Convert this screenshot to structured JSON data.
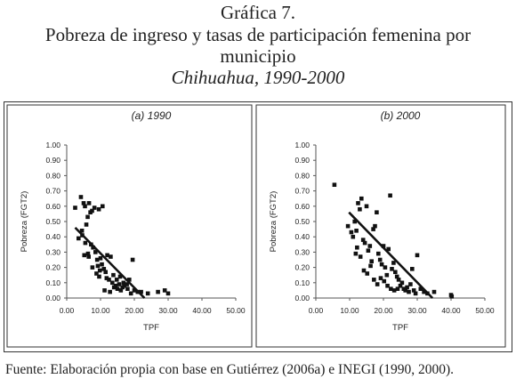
{
  "header": {
    "line1": "Gráfica 7.",
    "line2": "Pobreza de ingreso y tasas de participación femenina por",
    "line3": "municipio",
    "line4": "Chihuahua, 1990-2000"
  },
  "source": "Fuente: Elaboración propia con base en Gutiérrez (2006a) e INEGI (1990, 2000).",
  "colors": {
    "marker": "#111111",
    "trend": "#111111",
    "frame": "#333333"
  },
  "chart_data": [
    {
      "type": "scatter",
      "title": "(a) 1990",
      "xlabel": "TPF",
      "ylabel": "Pobreza (FGT2)",
      "xlim": [
        0,
        50
      ],
      "ylim": [
        0,
        1
      ],
      "x_ticks": [
        "0.00",
        "10.00",
        "20.00",
        "30.00",
        "40.00",
        "50.00"
      ],
      "y_ticks": [
        "0.00",
        "0.10",
        "0.20",
        "0.30",
        "0.40",
        "0.50",
        "0.60",
        "0.70",
        "0.80",
        "0.90",
        "1.00"
      ],
      "points": [
        [
          2.5,
          0.59
        ],
        [
          3.5,
          0.39
        ],
        [
          4.2,
          0.66
        ],
        [
          4.6,
          0.41
        ],
        [
          5.0,
          0.62
        ],
        [
          5.4,
          0.6
        ],
        [
          5.8,
          0.48
        ],
        [
          6.2,
          0.53
        ],
        [
          6.6,
          0.62
        ],
        [
          7.0,
          0.56
        ],
        [
          7.5,
          0.57
        ],
        [
          8.2,
          0.59
        ],
        [
          9.5,
          0.58
        ],
        [
          10.6,
          0.6
        ],
        [
          4.5,
          0.44
        ],
        [
          5.5,
          0.36
        ],
        [
          6.3,
          0.29
        ],
        [
          7.2,
          0.35
        ],
        [
          7.8,
          0.33
        ],
        [
          8.5,
          0.3
        ],
        [
          9.0,
          0.25
        ],
        [
          10.0,
          0.26
        ],
        [
          11.0,
          0.19
        ],
        [
          8.8,
          0.16
        ],
        [
          9.6,
          0.14
        ],
        [
          6.5,
          0.27
        ],
        [
          5.2,
          0.28
        ],
        [
          7.6,
          0.2
        ],
        [
          9.2,
          0.21
        ],
        [
          10.4,
          0.22
        ],
        [
          11.5,
          0.17
        ],
        [
          12.0,
          0.28
        ],
        [
          13.0,
          0.27
        ],
        [
          12.5,
          0.12
        ],
        [
          13.5,
          0.1
        ],
        [
          14.0,
          0.07
        ],
        [
          14.5,
          0.08
        ],
        [
          15.0,
          0.06
        ],
        [
          15.5,
          0.09
        ],
        [
          16.0,
          0.05
        ],
        [
          16.5,
          0.07
        ],
        [
          17.0,
          0.08
        ],
        [
          18.0,
          0.06
        ],
        [
          19.5,
          0.25
        ],
        [
          19.0,
          0.03
        ],
        [
          20.0,
          0.05
        ],
        [
          21.0,
          0.04
        ],
        [
          22.0,
          0.04
        ],
        [
          24.0,
          0.03
        ],
        [
          27.0,
          0.04
        ],
        [
          29.0,
          0.05
        ],
        [
          30.0,
          0.03
        ],
        [
          11.2,
          0.05
        ],
        [
          12.8,
          0.04
        ],
        [
          13.8,
          0.15
        ],
        [
          14.8,
          0.12
        ],
        [
          15.8,
          0.14
        ],
        [
          16.8,
          0.1
        ],
        [
          17.8,
          0.09
        ],
        [
          18.5,
          0.12
        ],
        [
          9.8,
          0.18
        ],
        [
          11.8,
          0.13
        ]
      ],
      "trend": {
        "x": [
          2.5,
          23.0
        ],
        "y": [
          0.46,
          0.0
        ]
      }
    },
    {
      "type": "scatter",
      "title": "(b) 2000",
      "xlabel": "TPF",
      "ylabel": "Pobreza (FGT2)",
      "xlim": [
        0,
        50
      ],
      "ylim": [
        0,
        1
      ],
      "x_ticks": [
        "0.00",
        "10.00",
        "20.00",
        "30.00",
        "40.00",
        "50.00"
      ],
      "y_ticks": [
        "0.00",
        "0.10",
        "0.20",
        "0.30",
        "0.40",
        "0.50",
        "0.60",
        "0.70",
        "0.80",
        "0.90",
        "1.00"
      ],
      "points": [
        [
          5.5,
          0.74
        ],
        [
          9.5,
          0.47
        ],
        [
          10.5,
          0.43
        ],
        [
          11.0,
          0.4
        ],
        [
          11.5,
          0.5
        ],
        [
          12.0,
          0.44
        ],
        [
          12.5,
          0.62
        ],
        [
          13.0,
          0.58
        ],
        [
          13.5,
          0.65
        ],
        [
          14.0,
          0.38
        ],
        [
          14.5,
          0.36
        ],
        [
          15.0,
          0.6
        ],
        [
          15.5,
          0.31
        ],
        [
          16.0,
          0.34
        ],
        [
          16.5,
          0.24
        ],
        [
          17.0,
          0.45
        ],
        [
          17.5,
          0.47
        ],
        [
          18.0,
          0.56
        ],
        [
          18.5,
          0.29
        ],
        [
          19.0,
          0.25
        ],
        [
          19.5,
          0.22
        ],
        [
          20.0,
          0.34
        ],
        [
          20.5,
          0.2
        ],
        [
          21.0,
          0.15
        ],
        [
          21.5,
          0.32
        ],
        [
          22.0,
          0.67
        ],
        [
          22.5,
          0.19
        ],
        [
          23.0,
          0.23
        ],
        [
          23.5,
          0.17
        ],
        [
          24.0,
          0.14
        ],
        [
          24.5,
          0.12
        ],
        [
          25.0,
          0.08
        ],
        [
          25.5,
          0.1
        ],
        [
          26.0,
          0.06
        ],
        [
          26.5,
          0.05
        ],
        [
          27.0,
          0.07
        ],
        [
          27.5,
          0.04
        ],
        [
          28.0,
          0.09
        ],
        [
          28.5,
          0.19
        ],
        [
          29.0,
          0.05
        ],
        [
          29.5,
          0.03
        ],
        [
          30.0,
          0.28
        ],
        [
          31.0,
          0.06
        ],
        [
          32.0,
          0.04
        ],
        [
          33.0,
          0.03
        ],
        [
          35.0,
          0.04
        ],
        [
          40.0,
          0.02
        ],
        [
          40.2,
          0.01
        ],
        [
          13.2,
          0.27
        ],
        [
          14.2,
          0.18
        ],
        [
          15.2,
          0.16
        ],
        [
          16.2,
          0.21
        ],
        [
          17.2,
          0.12
        ],
        [
          18.2,
          0.09
        ],
        [
          19.2,
          0.13
        ],
        [
          20.2,
          0.11
        ],
        [
          21.2,
          0.08
        ],
        [
          22.2,
          0.06
        ],
        [
          23.2,
          0.05
        ],
        [
          24.2,
          0.06
        ],
        [
          12.2,
          0.33
        ],
        [
          11.8,
          0.29
        ]
      ],
      "trend": {
        "x": [
          9.8,
          34.5
        ],
        "y": [
          0.56,
          0.0
        ]
      }
    }
  ]
}
